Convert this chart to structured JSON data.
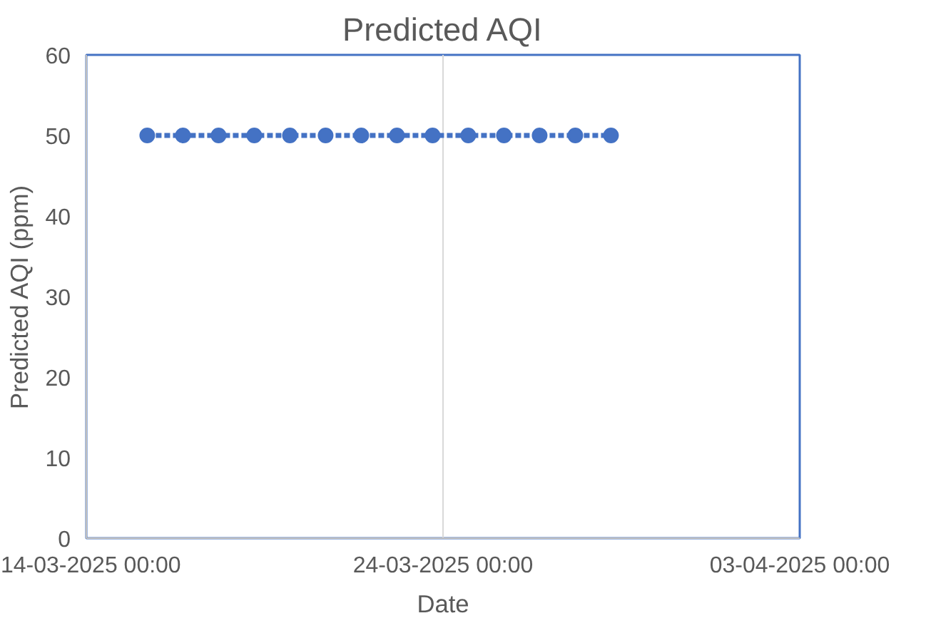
{
  "chart_data": {
    "type": "line",
    "title": "Predicted AQI",
    "xlabel": "Date",
    "ylabel": "Predicted AQI (ppm)",
    "x": [
      "2025-03-15T17:00",
      "2025-03-16T17:00",
      "2025-03-17T17:00",
      "2025-03-18T17:00",
      "2025-03-19T17:00",
      "2025-03-20T17:00",
      "2025-03-21T17:00",
      "2025-03-22T17:00",
      "2025-03-23T17:00",
      "2025-03-24T17:00",
      "2025-03-25T17:00",
      "2025-03-26T17:00",
      "2025-03-27T17:00",
      "2025-03-28T17:00"
    ],
    "series": [
      {
        "color": "#4472c4",
        "values": [
          50,
          50,
          50,
          50,
          50,
          50,
          50,
          50,
          50,
          50,
          50,
          50,
          50,
          50
        ]
      }
    ],
    "xlim": [
      "2025-03-14T00:00",
      "2025-04-03T00:00"
    ],
    "xticks": [
      {
        "value": "2025-03-14T00:00",
        "label": "14-03-2025 00:00"
      },
      {
        "value": "2025-03-24T00:00",
        "label": "24-03-2025 00:00"
      },
      {
        "value": "2025-04-03T00:00",
        "label": "03-04-2025 00:00"
      }
    ],
    "ylim": [
      0,
      60
    ],
    "yticks": [
      0,
      10,
      20,
      30,
      40,
      50,
      60
    ],
    "grid": "x",
    "marker": "circle",
    "line_style": "dashed"
  }
}
